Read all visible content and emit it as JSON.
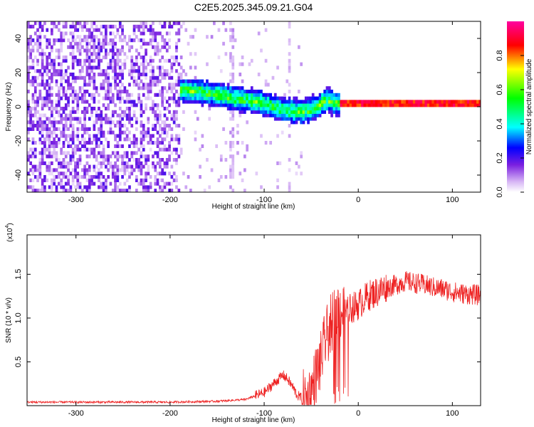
{
  "title": "C2E5.2025.345.09.21.G04",
  "chart_data": [
    {
      "type": "heatmap",
      "xlabel": "Height of straight line (km)",
      "ylabel": "Frequency (Hz)",
      "xlim": [
        -352,
        130
      ],
      "ylim": [
        -50,
        50
      ],
      "xticks": [
        -300,
        -200,
        -100,
        0,
        100
      ],
      "yticks": [
        -40,
        -20,
        0,
        20,
        40
      ],
      "colorbar": {
        "label": "Normalized spectral amplitude",
        "range": [
          0.0,
          1.0
        ],
        "ticks": [
          0.0,
          0.2,
          0.4,
          0.6,
          0.8
        ],
        "tick_labels": [
          "0.0",
          "0.2",
          "0.4",
          "0.6",
          "0.8"
        ],
        "colormap": [
          "#ffffff",
          "#d8b8f5",
          "#7a1fe0",
          "#0000ff",
          "#00ffff",
          "#00ff00",
          "#ffff00",
          "#ff0000",
          "#ff00a0"
        ]
      },
      "ridge": {
        "x": [
          -190,
          -170,
          -150,
          -130,
          -110,
          -95,
          -80,
          -60,
          -45,
          -35,
          -25,
          -15,
          0,
          20,
          40,
          60,
          80,
          100,
          130
        ],
        "y": [
          9,
          8,
          6,
          4,
          2,
          0,
          -3,
          -4,
          -1,
          3,
          1,
          1,
          1,
          1,
          1,
          1,
          1,
          1,
          1
        ]
      }
    },
    {
      "type": "line",
      "xlabel": "Height of straight line (km)",
      "ylabel": "SNR (10 * v/v)",
      "y_multiplier": "(x10",
      "y_multiplier_exp": "4",
      "xlim": [
        -352,
        130
      ],
      "ylim": [
        0.0,
        1.95
      ],
      "xticks": [
        -300,
        -200,
        -100,
        0,
        100
      ],
      "yticks": [
        0.5,
        1.0,
        1.5
      ],
      "ytick_labels": [
        "0.5",
        "1.0",
        "1.5"
      ],
      "color": "#ee2222",
      "series": [
        {
          "x": [
            -352,
            -300,
            -250,
            -200,
            -150,
            -120,
            -100,
            -90,
            -80,
            -75,
            -70,
            -65,
            -55,
            -50,
            -45,
            -40,
            -35,
            -30,
            -25,
            -20,
            -15,
            -10,
            0,
            10,
            20,
            30,
            40,
            50,
            60,
            70,
            80,
            90,
            100,
            110,
            120,
            130
          ],
          "y": [
            0.04,
            0.04,
            0.04,
            0.04,
            0.05,
            0.07,
            0.15,
            0.25,
            0.35,
            0.3,
            0.22,
            0.12,
            0.05,
            0.15,
            0.35,
            0.5,
            0.75,
            0.9,
            1.05,
            1.1,
            1.05,
            1.1,
            1.15,
            1.25,
            1.3,
            1.35,
            1.38,
            1.42,
            1.4,
            1.38,
            1.35,
            1.33,
            1.3,
            1.28,
            1.27,
            1.26
          ]
        }
      ]
    }
  ]
}
